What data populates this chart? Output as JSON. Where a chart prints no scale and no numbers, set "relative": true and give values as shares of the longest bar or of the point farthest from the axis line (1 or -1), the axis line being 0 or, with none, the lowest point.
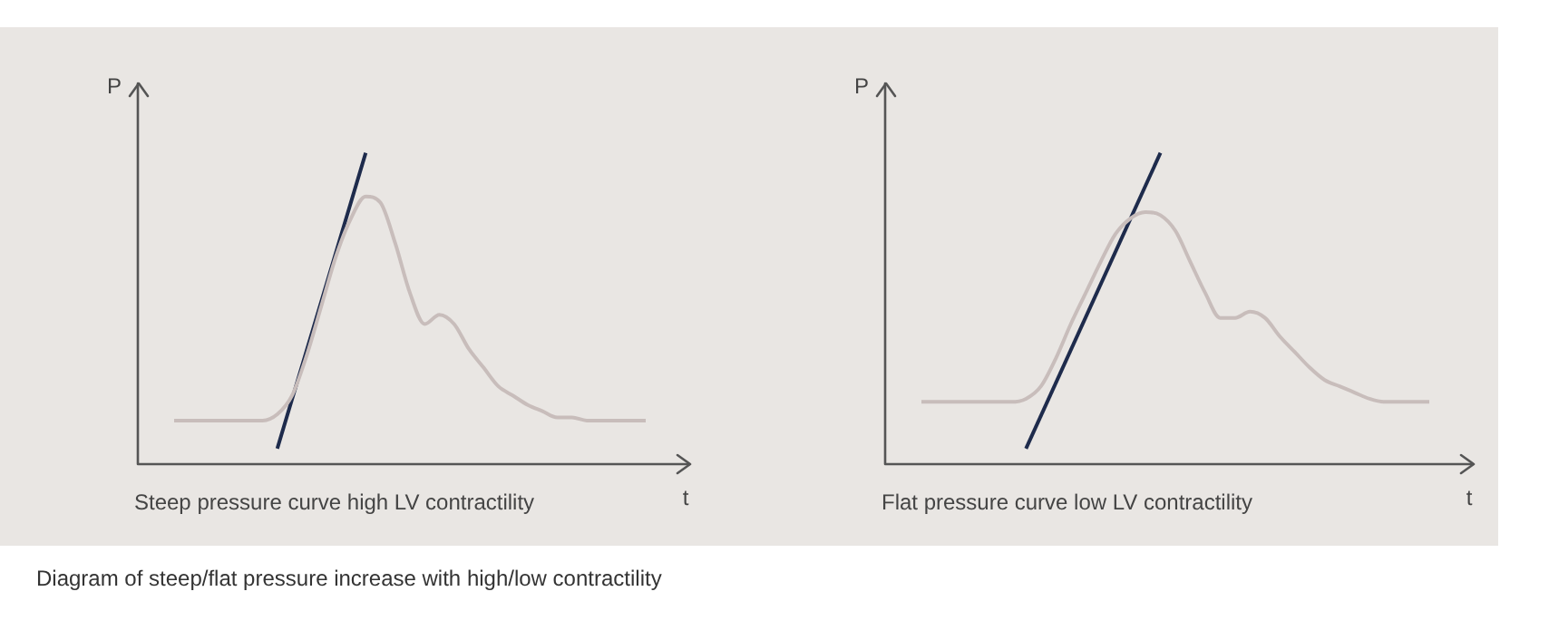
{
  "chart_data": [
    {
      "type": "line",
      "title": "Steep pressure curve high LV contractility",
      "xlabel": "t",
      "ylabel": "P",
      "relative": true,
      "legend": false,
      "marker": "none",
      "categories": [
        null,
        null,
        null,
        null,
        null,
        null,
        null,
        null,
        null,
        null,
        null,
        null,
        null,
        null,
        null,
        null,
        null,
        null,
        null,
        null,
        null,
        null,
        null,
        null,
        null,
        null,
        null,
        null,
        null,
        null,
        null,
        null,
        null
      ],
      "series": [
        {
          "color": "#c8bdbb",
          "values": [
            0.14,
            0.14,
            0.14,
            0.14,
            0.14,
            0.14,
            0.14,
            0.16,
            0.22,
            0.35,
            0.51,
            0.67,
            0.79,
            0.86,
            0.84,
            0.71,
            0.55,
            0.45,
            0.48,
            0.45,
            0.37,
            0.31,
            0.25,
            0.22,
            0.19,
            0.17,
            0.15,
            0.15,
            0.14,
            0.14,
            0.14,
            0.14,
            0.14
          ]
        },
        {
          "color": "#1e2b4c",
          "values": [
            null,
            null,
            null,
            null,
            null,
            null,
            null,
            0.05,
            null,
            null,
            null,
            null,
            null,
            1,
            null,
            null,
            null,
            null,
            null,
            null,
            null,
            null,
            null,
            null,
            null,
            null,
            null,
            null,
            null,
            null,
            null,
            null,
            null
          ]
        }
      ],
      "annotations": [
        "Diagram of steep/flat pressure increase with high/low contractility"
      ]
    },
    {
      "type": "line",
      "title": "Flat pressure curve low LV contractility",
      "xlabel": "t",
      "ylabel": "P",
      "relative": true,
      "legend": false,
      "marker": "none",
      "categories": [
        null,
        null,
        null,
        null,
        null,
        null,
        null,
        null,
        null,
        null,
        null,
        null,
        null,
        null,
        null,
        null,
        null,
        null,
        null,
        null,
        null,
        null,
        null,
        null,
        null,
        null,
        null,
        null,
        null,
        null,
        null,
        null,
        null,
        null,
        null
      ],
      "series": [
        {
          "color": "#c8bdbb",
          "values": [
            0.2,
            0.2,
            0.2,
            0.2,
            0.2,
            0.2,
            0.2,
            0.21,
            0.25,
            0.34,
            0.45,
            0.55,
            0.65,
            0.74,
            0.79,
            0.81,
            0.8,
            0.75,
            0.65,
            0.55,
            0.47,
            0.47,
            0.49,
            0.47,
            0.41,
            0.36,
            0.31,
            0.27,
            0.25,
            0.23,
            0.21,
            0.2,
            0.2,
            0.2,
            0.2
          ]
        },
        {
          "color": "#1e2b4c",
          "values": [
            null,
            null,
            null,
            null,
            null,
            null,
            null,
            0.05,
            null,
            null,
            null,
            null,
            null,
            null,
            null,
            null,
            1,
            null,
            null,
            null,
            null,
            null,
            null,
            null,
            null,
            null,
            null,
            null,
            null,
            null,
            null,
            null,
            null,
            null,
            null
          ]
        }
      ]
    }
  ]
}
